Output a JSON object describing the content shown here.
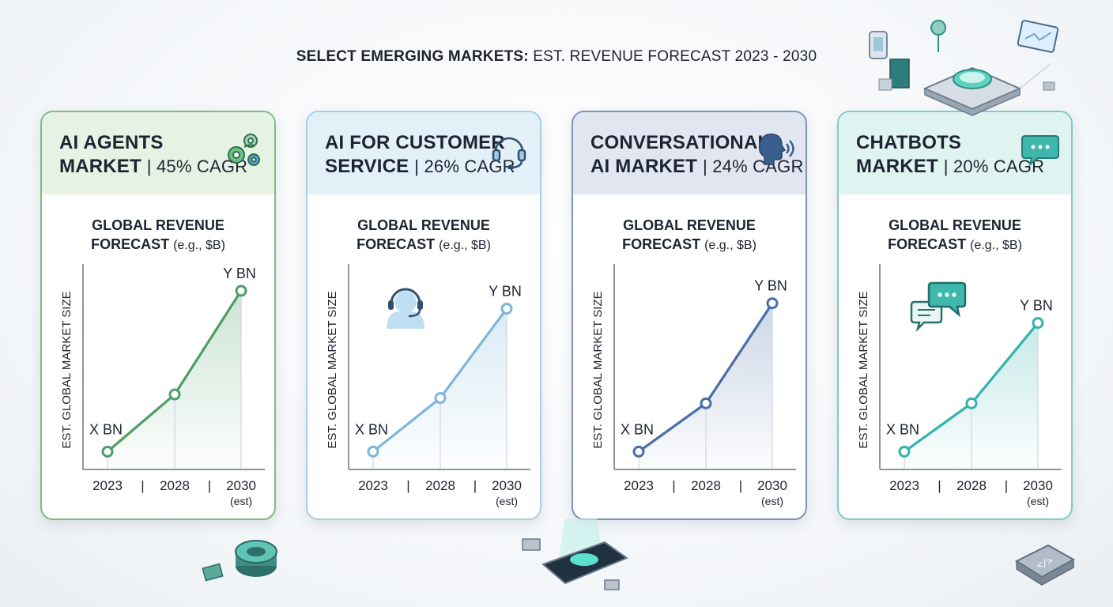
{
  "title": {
    "bold": "SELECT EMERGING MARKETS:",
    "rest": " EST. REVENUE FORECAST 2023 - 2030"
  },
  "chart_data": [
    {
      "type": "line",
      "title": "AI AGENTS MARKET | 45% CAGR",
      "title_line1": "AI AGENTS",
      "title_line2": "MARKET",
      "cagr": "| 45% CAGR",
      "subtitle_line1": "GLOBAL REVENUE",
      "subtitle_line2": "FORECAST",
      "subtitle_unit": "(e.g., $B)",
      "ylabel": "EST. GLOBAL MARKET SIZE",
      "x": [
        "2023",
        "2028",
        "2030"
      ],
      "x_note": "(est)",
      "x_separator": "|",
      "values": [
        1,
        4.2,
        10
      ],
      "ylim": [
        0,
        11.5
      ],
      "point_labels": [
        "X BN",
        "",
        "Y BN"
      ],
      "grid": false,
      "icon": "gears-icon",
      "color": "#4e9e67",
      "head_bg": "#e6f2e3",
      "border": "#7dbd85"
    },
    {
      "type": "line",
      "title": "AI FOR CUSTOMER SERVICE | 26% CAGR",
      "title_line1": "AI FOR CUSTOMER",
      "title_line2": "SERVICE",
      "cagr": "| 26% CAGR",
      "subtitle_line1": "GLOBAL REVENUE",
      "subtitle_line2": "FORECAST",
      "subtitle_unit": "(e.g., $B)",
      "ylabel": "EST. GLOBAL MARKET SIZE",
      "x": [
        "2023",
        "2028",
        "2030"
      ],
      "x_note": "(est)",
      "x_separator": "|",
      "values": [
        1,
        4.0,
        9.0
      ],
      "ylim": [
        0,
        11.5
      ],
      "point_labels": [
        "X BN",
        "",
        "Y BN"
      ],
      "grid": false,
      "icon": "headset-icon",
      "color": "#7cb6d8",
      "head_bg": "#e3f0f8",
      "border": "#a9cfe6"
    },
    {
      "type": "line",
      "title": "CONVERSATIONAL AI MARKET | 24% CAGR",
      "title_line1": "CONVERSATIONAL",
      "title_line2": "AI MARKET",
      "cagr": "| 24% CAGR",
      "subtitle_line1": "GLOBAL REVENUE",
      "subtitle_line2": "FORECAST",
      "subtitle_unit": "(e.g., $B)",
      "ylabel": "EST. GLOBAL MARKET SIZE",
      "x": [
        "2023",
        "2028",
        "2030"
      ],
      "x_note": "(est)",
      "x_separator": "|",
      "values": [
        1,
        3.7,
        9.3
      ],
      "ylim": [
        0,
        11.5
      ],
      "point_labels": [
        "X BN",
        "",
        "Y BN"
      ],
      "grid": false,
      "icon": "speaking-head-icon",
      "color": "#4a6fa5",
      "head_bg": "#e1e6f0",
      "border": "#7e93b8"
    },
    {
      "type": "line",
      "title": "CHATBOTS MARKET | 20% CAGR",
      "title_line1": "CHATBOTS",
      "title_line2": "MARKET",
      "cagr": "| 20% CAGR",
      "subtitle_line1": "GLOBAL REVENUE",
      "subtitle_line2": "FORECAST",
      "subtitle_unit": "(e.g., $B)",
      "ylabel": "EST. GLOBAL MARKET SIZE",
      "x": [
        "2023",
        "2028",
        "2030"
      ],
      "x_note": "(est)",
      "x_separator": "|",
      "values": [
        1,
        3.7,
        8.2
      ],
      "ylim": [
        0,
        11.5
      ],
      "point_labels": [
        "X BN",
        "",
        "Y BN"
      ],
      "grid": false,
      "icon": "chat-bubble-icon",
      "color": "#34b3ad",
      "head_bg": "#dff3f1",
      "border": "#7dccc6"
    }
  ]
}
